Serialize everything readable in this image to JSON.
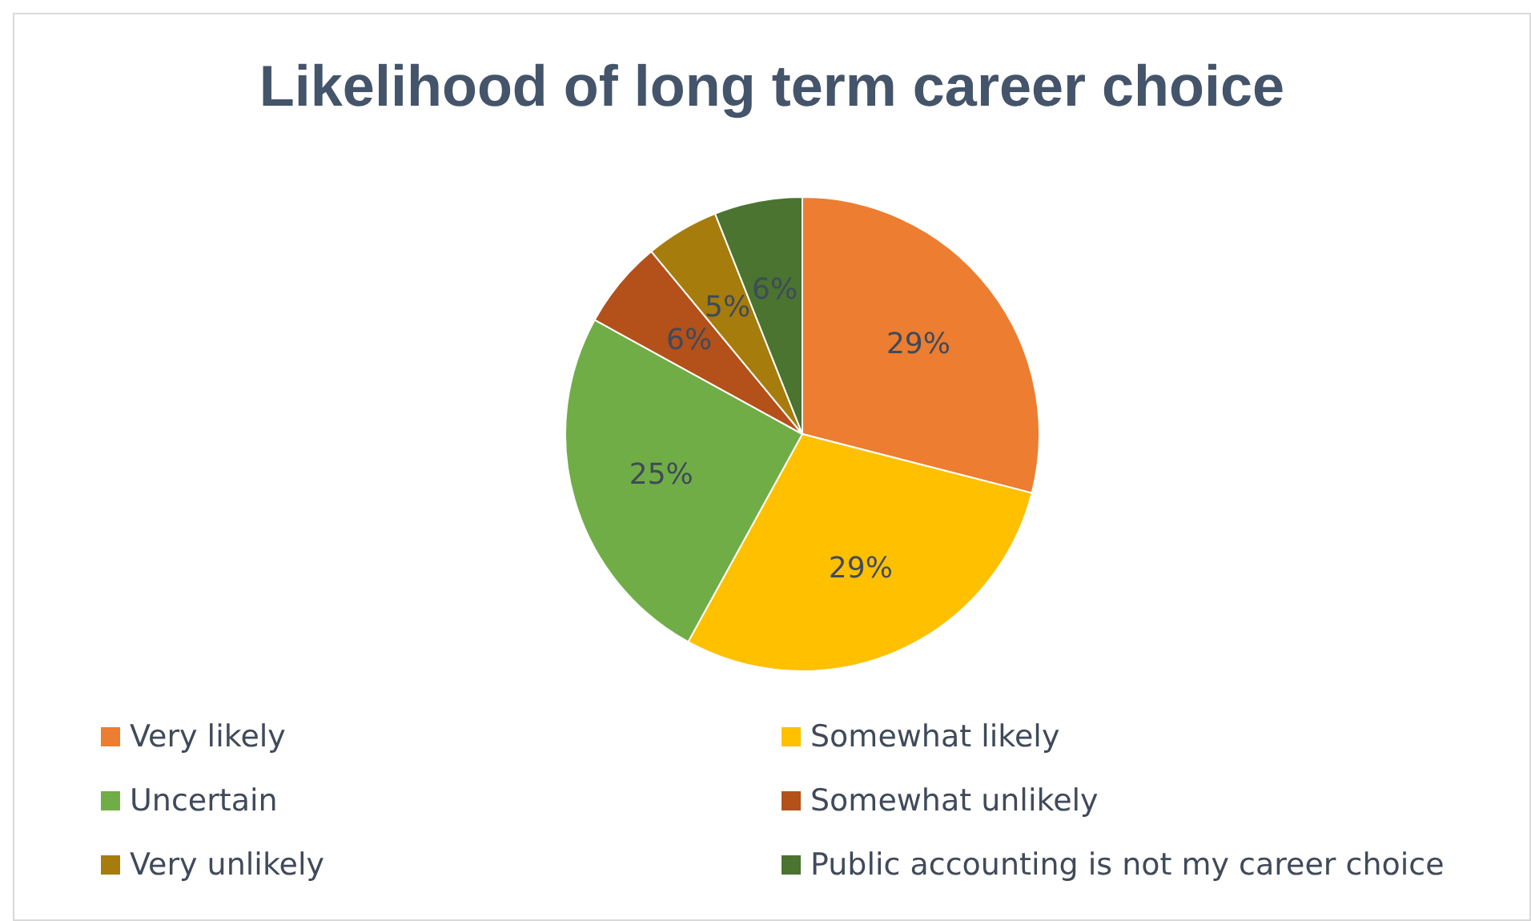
{
  "chart_data": {
    "type": "pie",
    "title": "Likelihood of long term career choice",
    "categories": [
      "Very likely",
      "Somewhat likely",
      "Uncertain",
      "Somewhat unlikely",
      "Very unlikely",
      "Public accounting is not my career choice"
    ],
    "values": [
      29,
      29,
      25,
      6,
      5,
      6
    ],
    "colors": [
      "#ed7d31",
      "#ffc000",
      "#70ad47",
      "#b4501a",
      "#a67c0c",
      "#4a7430"
    ],
    "value_labels": [
      "29%",
      "29%",
      "25%",
      "6%",
      "5%",
      "6%"
    ],
    "legend": "bottom"
  }
}
